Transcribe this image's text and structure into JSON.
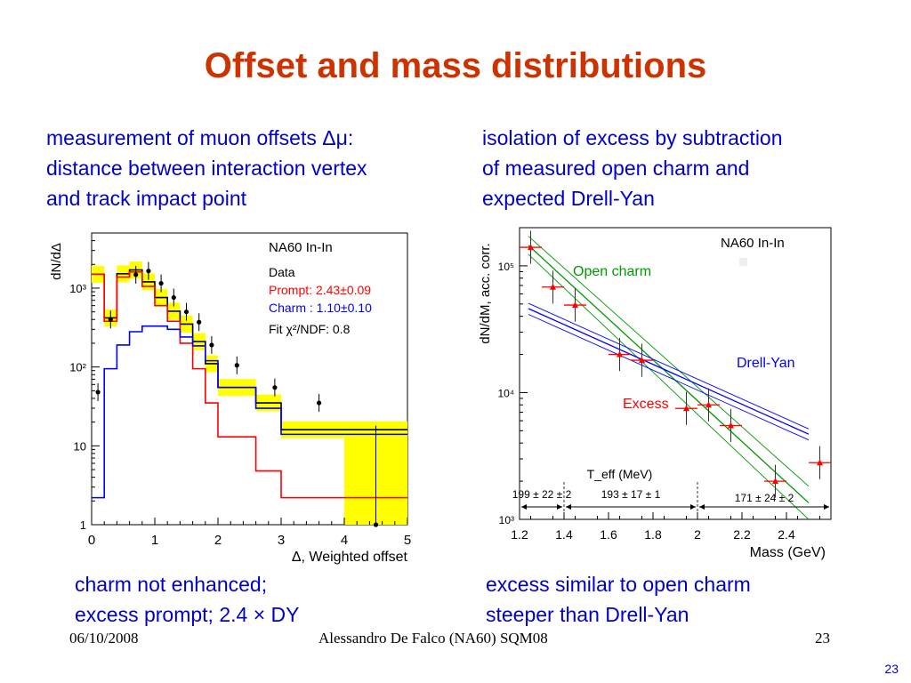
{
  "slide": {
    "title": "Offset and mass distributions",
    "left_text": [
      "measurement of muon offsets Δμ:",
      "distance between interaction vertex",
      "and track impact point"
    ],
    "right_text": [
      "isolation of excess by subtraction",
      "of  measured open charm and",
      "expected Drell-Yan"
    ],
    "left_caption": [
      "charm not enhanced;",
      "excess prompt; 2.4 × DY"
    ],
    "right_caption": [
      "excess similar to open charm",
      "steeper than Drell-Yan"
    ],
    "footer_date": "06/10/2008",
    "footer_author": "Alessandro De Falco (NA60) SQM08",
    "footer_page": "23",
    "corner_page": "23"
  },
  "colors": {
    "title": "#cc3300",
    "text": "#0000cc",
    "data": "#000000",
    "prompt": "#ff0000",
    "charm": "#0000ff",
    "fitband": "#ffff00",
    "opencharm": "#009900",
    "excess": "#ff0000",
    "drellyan": "#0000ff"
  },
  "chart_data": [
    {
      "type": "histogram",
      "title": "NA60 In-In",
      "xlabel": "Δ, Weighted offset",
      "ylabel": "dN/dΔ",
      "xlim": [
        0,
        5
      ],
      "ylim": [
        1,
        5000
      ],
      "yscale": "log",
      "xticks": [
        "0",
        "1",
        "2",
        "3",
        "4",
        "5"
      ],
      "yticks": [
        "1",
        "10",
        "10²",
        "10³"
      ],
      "legend": [
        "Data",
        "Prompt: 2.43±0.09",
        "Charm : 1.10±0.10",
        "Fit  χ²/NDF:  0.8"
      ],
      "bin_edges": [
        0,
        0.2,
        0.4,
        0.6,
        0.8,
        1.0,
        1.2,
        1.4,
        1.6,
        1.8,
        2.0,
        2.6,
        3.0,
        4.0,
        5.0
      ],
      "series": [
        {
          "name": "Data",
          "x": [
            0.1,
            0.3,
            0.7,
            0.9,
            1.1,
            1.3,
            1.5,
            1.7,
            1.9,
            2.3,
            2.9,
            3.6,
            4.5
          ],
          "y": [
            48,
            400,
            1480,
            1650,
            1150,
            760,
            500,
            370,
            190,
            105,
            55,
            35,
            1
          ]
        },
        {
          "name": "Fit",
          "values": [
            1500,
            420,
            1520,
            1700,
            1200,
            760,
            510,
            350,
            210,
            110,
            55,
            35,
            16,
            16
          ]
        },
        {
          "name": "Prompt",
          "values": [
            1500,
            380,
            1380,
            1600,
            1050,
            600,
            380,
            200,
            95,
            35,
            13,
            4.8,
            2.2,
            2.2
          ]
        },
        {
          "name": "Charm",
          "values": [
            2.2,
            95,
            190,
            280,
            330,
            330,
            300,
            240,
            185,
            120,
            55,
            30,
            14,
            14
          ]
        }
      ]
    },
    {
      "type": "scatter",
      "title": "NA60 In-In",
      "xlabel": "Mass (GeV)",
      "ylabel": "dN/dM, acc. corr.",
      "xlim": [
        1.2,
        2.6
      ],
      "ylim": [
        1000,
        200000
      ],
      "yscale": "log",
      "xticks": [
        "1.2",
        "1.4",
        "1.6",
        "1.8",
        "2",
        "2.2",
        "2.4"
      ],
      "yticks": [
        "10³",
        "10⁴",
        "10⁵"
      ],
      "annotations": [
        "Open charm",
        "Drell-Yan",
        "Excess",
        "T_eff (MeV)",
        "199 ± 22 ± 2",
        "193 ± 17 ± 1",
        "171 ± 24 ± 2"
      ],
      "series": [
        {
          "name": "Excess",
          "x": [
            1.25,
            1.35,
            1.45,
            1.65,
            1.75,
            1.95,
            2.05,
            2.15,
            2.35,
            2.55
          ],
          "y": [
            140000,
            68000,
            49000,
            20000,
            18000,
            7500,
            8000,
            5500,
            2000,
            2800
          ]
        },
        {
          "name": "Open charm",
          "x": [
            1.24,
            2.5
          ],
          "y": [
            145000,
            1350
          ]
        },
        {
          "name": "Drell-Yan",
          "x": [
            1.24,
            2.5
          ],
          "y": [
            46000,
            4700
          ]
        }
      ]
    }
  ]
}
